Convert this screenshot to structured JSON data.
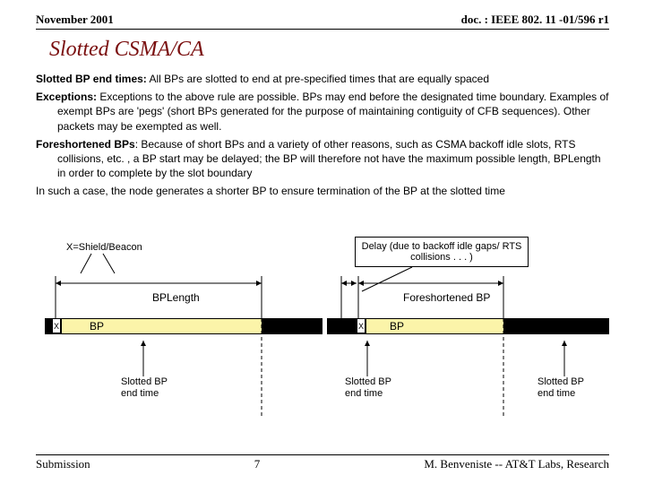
{
  "header": {
    "left": "November 2001",
    "right": "doc. : IEEE 802. 11 -01/596 r1"
  },
  "title": "Slotted CSMA/CA",
  "para1_label": "Slotted BP end times:",
  "para1_text": " All BPs are slotted to end at pre-specified times that are equally spaced",
  "para2_label": "Exceptions:",
  "para2_text": " Exceptions to the above rule are possible.  BPs may end before the designated time boundary.  Examples of exempt BPs are 'pegs' (short BPs generated for the purpose of maintaining contiguity of CFB sequences).  Other packets may be exempted as well.",
  "para3_label": "Foreshortened BPs",
  "para3_text": ": Because of short BPs and a variety of other reasons, such as CSMA backoff idle slots, RTS collisions, etc. , a BP start may be delayed; the BP will therefore not have the maximum possible length, BPLength in order to complete by the slot boundary",
  "para3b": "In such a case, the node generates a shorter BP to ensure termination of the BP at the slotted time",
  "xshield": "X=Shield/Beacon",
  "delay": "Delay (due to backoff idle gaps/ RTS collisions  . . . )",
  "bplength": "BPLength",
  "foreshortened": "Foreshortened BP",
  "x": "X",
  "bp": "BP",
  "slotted": "Slotted BP\nend time",
  "footer": {
    "left": "Submission",
    "num": "7",
    "right": "M. Benveniste -- AT&T Labs, Research"
  },
  "colors": {
    "bp_fill": "#fbf4a9",
    "timeline": "#000000"
  }
}
